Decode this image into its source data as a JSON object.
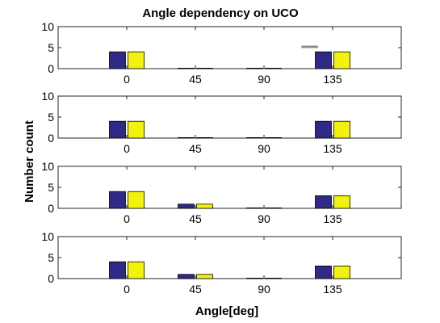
{
  "chart_data": {
    "type": "bar",
    "title": "Angle dependency on UCO",
    "xlabel": "Angle[deg]",
    "ylabel": "Number count",
    "categories": [
      "0",
      "45",
      "90",
      "135"
    ],
    "x": [
      0,
      45,
      90,
      135
    ],
    "xlim": [
      -45,
      180
    ],
    "ylim": [
      0,
      10
    ],
    "yticks": [
      0,
      5,
      10
    ],
    "colors": {
      "series_a": "#2e2a85",
      "series_b": "#f2f20d"
    },
    "panels": [
      {
        "series": [
          {
            "values": [
              4,
              0,
              0,
              4
            ]
          },
          {
            "values": [
              4,
              0,
              0,
              4
            ]
          }
        ],
        "marker": {
          "x": 120,
          "y": 5.2
        }
      },
      {
        "series": [
          {
            "values": [
              4,
              0,
              0,
              4
            ]
          },
          {
            "values": [
              4,
              0,
              0,
              4
            ]
          }
        ]
      },
      {
        "series": [
          {
            "values": [
              4,
              1,
              0,
              3
            ]
          },
          {
            "values": [
              4,
              1,
              0,
              3
            ]
          }
        ]
      },
      {
        "series": [
          {
            "values": [
              4,
              1,
              0,
              3
            ]
          },
          {
            "values": [
              4,
              1,
              0,
              3
            ]
          }
        ]
      }
    ]
  }
}
